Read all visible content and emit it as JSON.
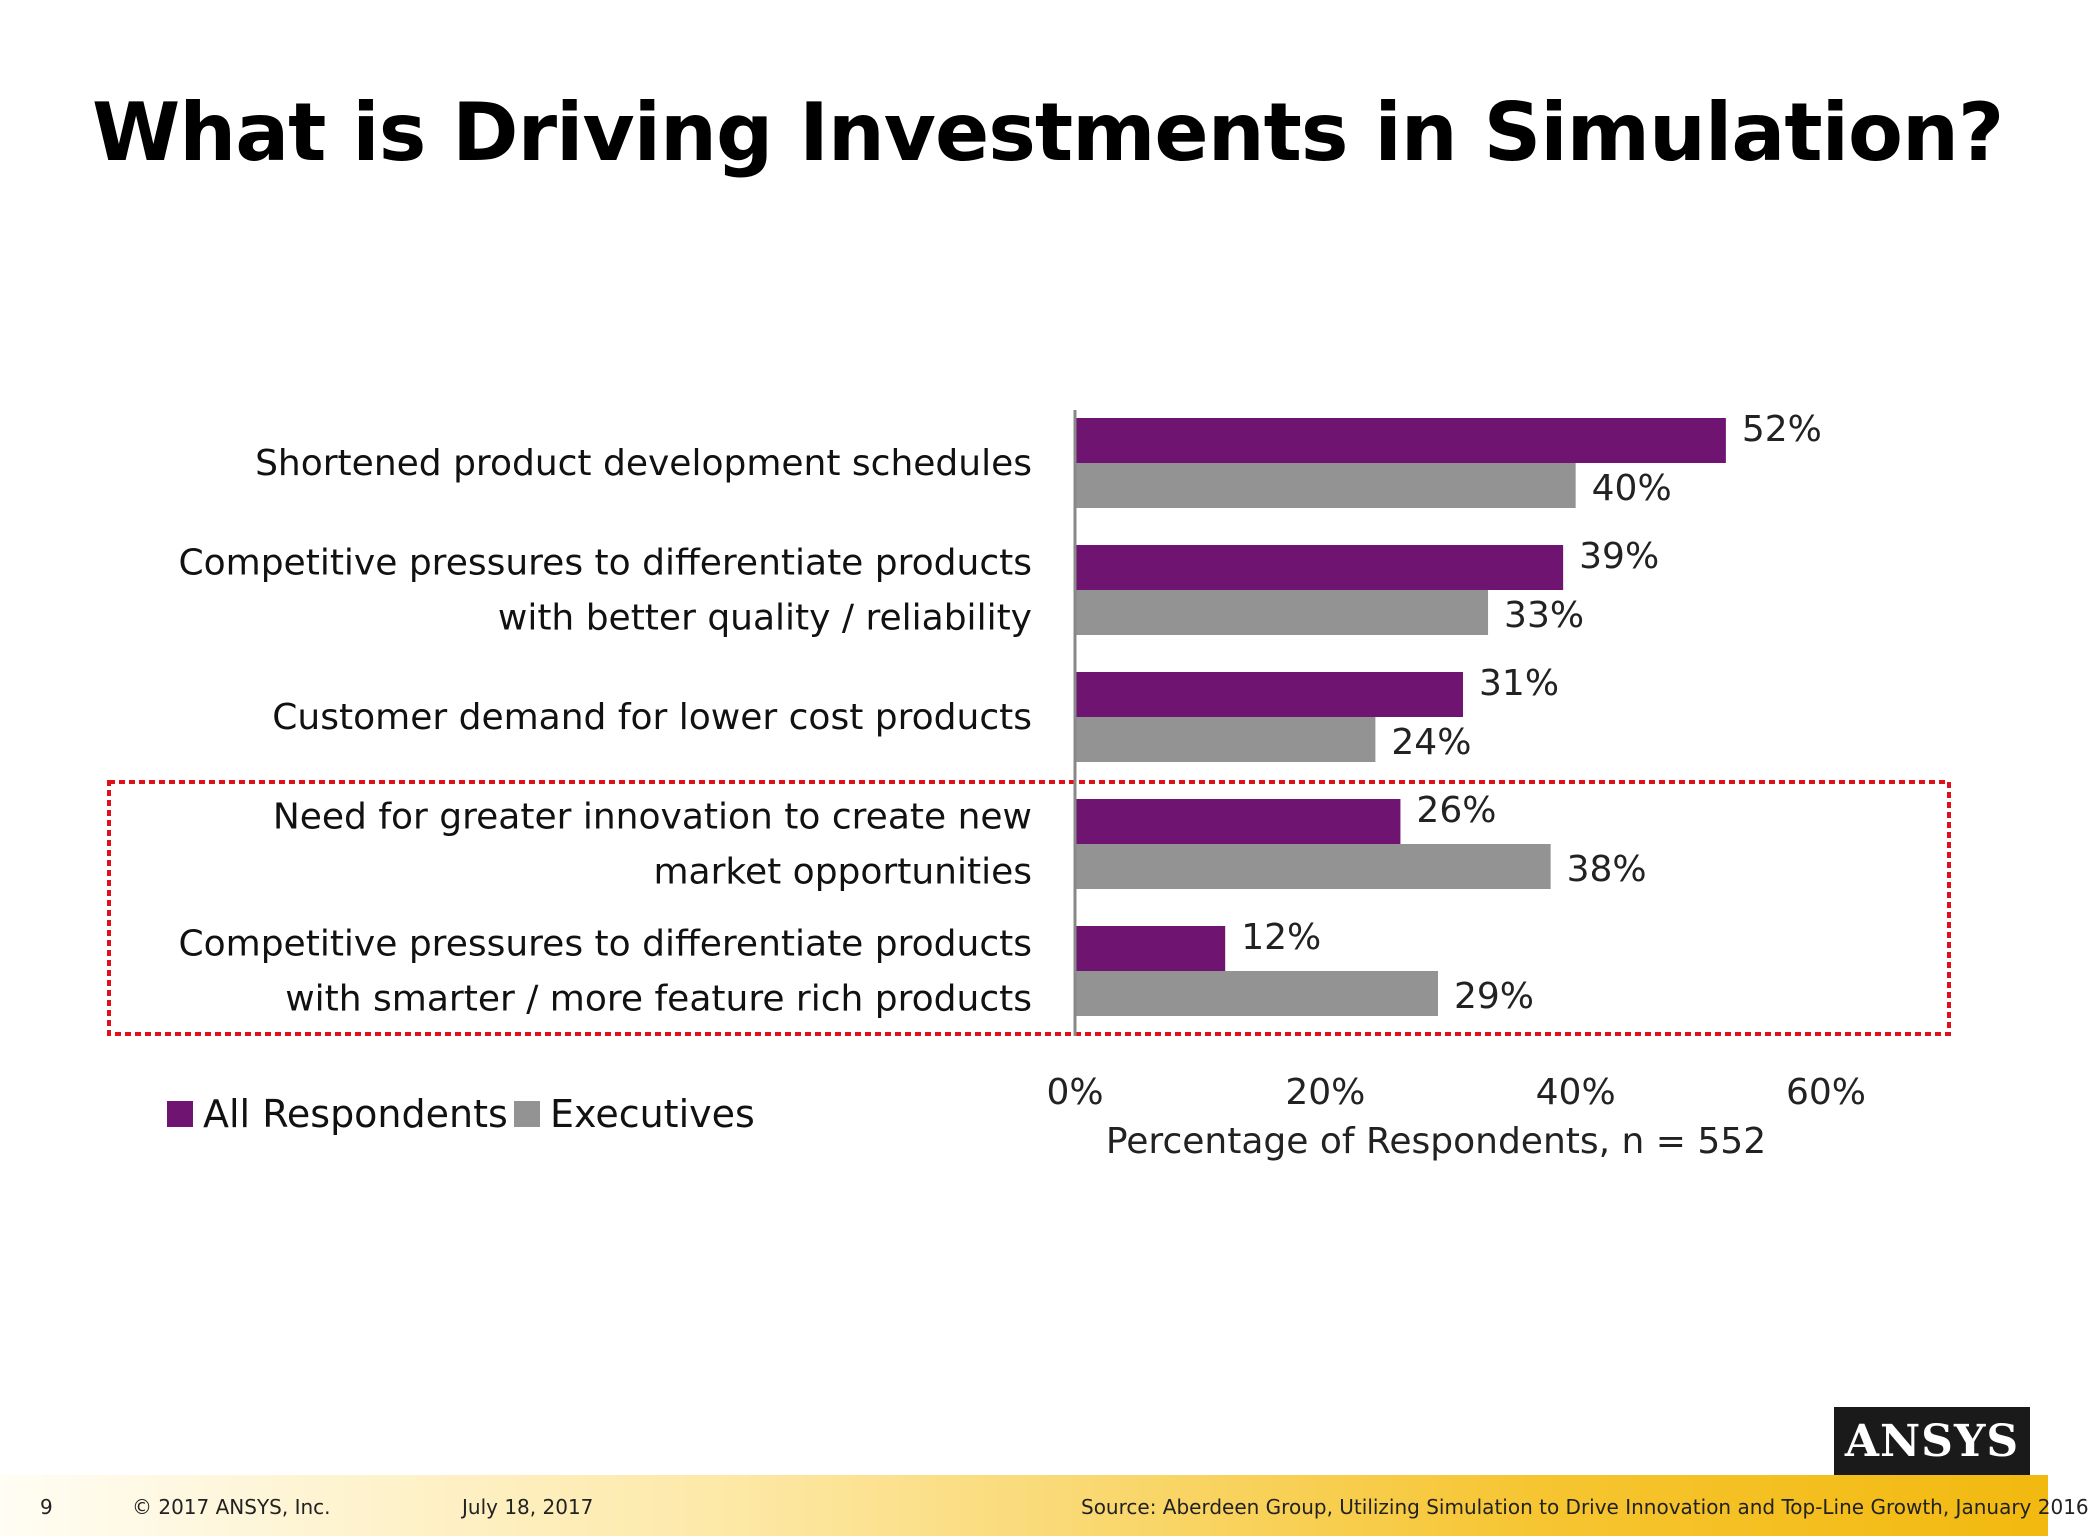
{
  "title": "What is Driving Investments in Simulation?",
  "chart_data": {
    "type": "bar",
    "orientation": "horizontal",
    "categories": [
      [
        "Shortened product development schedules"
      ],
      [
        "Competitive pressures to differentiate products",
        "with better quality / reliability"
      ],
      [
        "Customer demand for lower cost products"
      ],
      [
        "Need for greater innovation to create new",
        "market opportunities"
      ],
      [
        "Competitive pressures to differentiate products",
        "with smarter / more feature rich products"
      ]
    ],
    "series": [
      {
        "name": "All Respondents",
        "values": [
          52,
          39,
          31,
          26,
          12
        ],
        "labels": [
          "52%",
          "39%",
          "31%",
          "26%",
          "12%"
        ],
        "color": "#6f1470"
      },
      {
        "name": "Executives",
        "values": [
          40,
          33,
          24,
          38,
          29
        ],
        "labels": [
          "40%",
          "33%",
          "24%",
          "38%",
          "29%"
        ],
        "color": "#939393"
      }
    ],
    "xlim": [
      0,
      60
    ],
    "xticks": [
      "0%",
      "20%",
      "40%",
      "60%"
    ],
    "xlabel": "Percentage of Respondents, n = 552",
    "ylabel": "",
    "grid": false,
    "legend_position": "bottom-left",
    "highlight_color": "#e0101a"
  },
  "footer": {
    "page": "9",
    "copyright": "© 2017 ANSYS, Inc.",
    "date": "July 18, 2017",
    "source": "Source: Aberdeen Group, Utilizing Simulation to Drive Innovation and Top-Line Growth, January 2016"
  },
  "logo": {
    "main": "ANSYS"
  }
}
